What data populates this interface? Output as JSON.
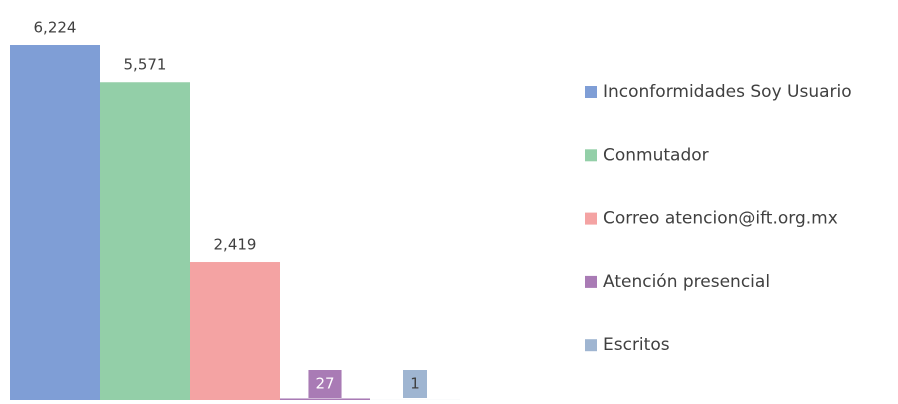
{
  "chart_data": {
    "type": "bar",
    "series": [
      {
        "name": "Inconformidades Soy Usuario",
        "color": "#7f9ed6",
        "values": [
          6224
        ],
        "value_labels": [
          "6,224"
        ]
      },
      {
        "name": "Conmutador",
        "color": "#93cfa8",
        "values": [
          5571
        ],
        "value_labels": [
          "5,571"
        ]
      },
      {
        "name": "Correo atencion@ift.org.mx",
        "color": "#f4a3a3",
        "values": [
          2419
        ],
        "value_labels": [
          "2,419"
        ]
      },
      {
        "name": "Atención presencial",
        "color": "#a97bb5",
        "values": [
          27
        ],
        "value_labels": [
          "27"
        ]
      },
      {
        "name": "Escritos",
        "color": "#9fb5d1",
        "values": [
          1
        ],
        "value_labels": [
          "1"
        ]
      }
    ],
    "legend": "right"
  }
}
